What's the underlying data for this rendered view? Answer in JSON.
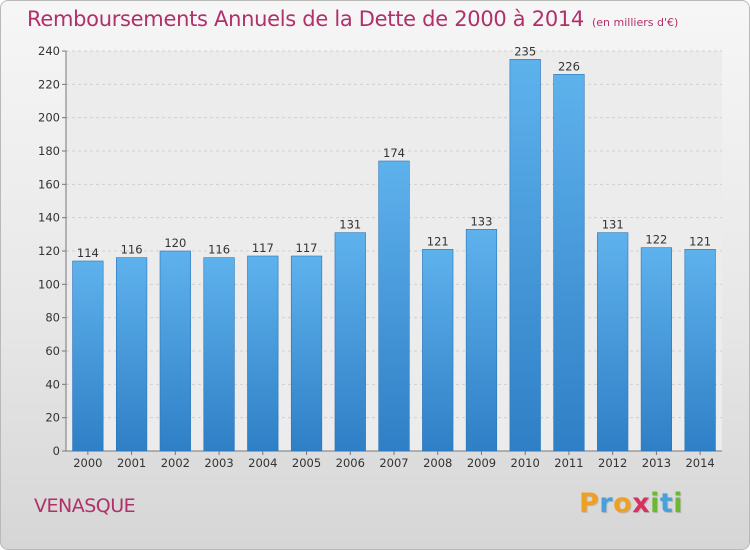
{
  "chart_data": {
    "type": "bar",
    "title": "Remboursements Annuels de la Dette de 2000 à 2014",
    "subtitle": "(en milliers d'€)",
    "categories": [
      "2000",
      "2001",
      "2002",
      "2003",
      "2004",
      "2005",
      "2006",
      "2007",
      "2008",
      "2009",
      "2010",
      "2011",
      "2012",
      "2013",
      "2014"
    ],
    "values": [
      114,
      116,
      120,
      116,
      117,
      117,
      131,
      174,
      121,
      133,
      235,
      226,
      131,
      122,
      121
    ],
    "ylim": [
      0,
      240
    ],
    "yticks": [
      0,
      20,
      40,
      60,
      80,
      100,
      120,
      140,
      160,
      180,
      200,
      220,
      240
    ],
    "grid": true,
    "bar_color": "#4a9de0",
    "title_color": "#b0306a"
  },
  "commune": "VENASQUE",
  "logo": {
    "letters": [
      {
        "ch": "P",
        "color": "#f0a020"
      },
      {
        "ch": "r",
        "color": "#4aa0d8"
      },
      {
        "ch": "o",
        "color": "#f0a020"
      },
      {
        "ch": "x",
        "color": "#d83060"
      },
      {
        "ch": "i",
        "color": "#6cb830"
      },
      {
        "ch": "t",
        "color": "#4aa0d8"
      },
      {
        "ch": "i",
        "color": "#6cb830"
      }
    ]
  }
}
